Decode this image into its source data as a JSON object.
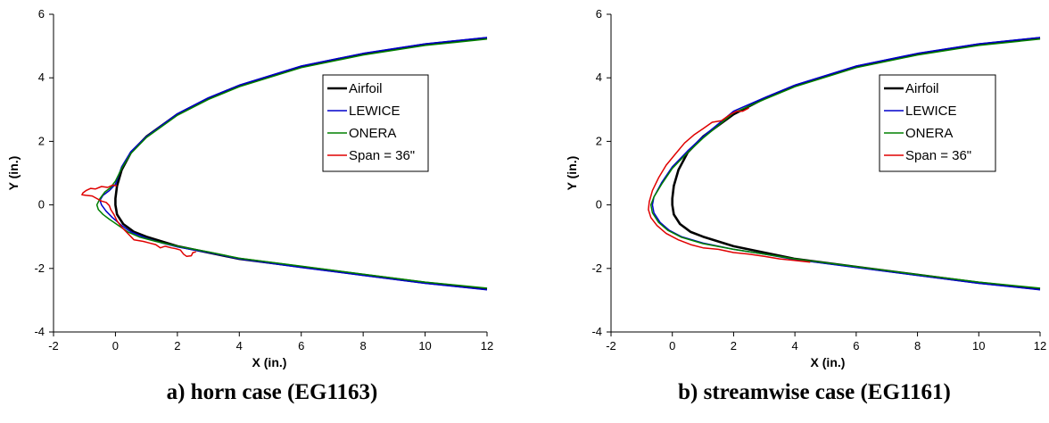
{
  "chart_data": [
    {
      "type": "line",
      "caption": "a) horn case (EG1163)",
      "xlabel": "X (in.)",
      "ylabel": "Y (in.)",
      "xlim": [
        -2,
        12
      ],
      "ylim": [
        -4,
        6
      ],
      "xticks": [
        "-2",
        "0",
        "2",
        "4",
        "6",
        "8",
        "10",
        "12"
      ],
      "yticks": [
        "-4",
        "-2",
        "0",
        "2",
        "4",
        "6"
      ],
      "legend": [
        "Airfoil",
        "LEWICE",
        "ONERA",
        "Span = 36\""
      ],
      "series": [
        {
          "name": "Airfoil",
          "color": "#000000",
          "points": [
            [
              12,
              5.25
            ],
            [
              10,
              5.05
            ],
            [
              8,
              4.75
            ],
            [
              6,
              4.35
            ],
            [
              4,
              3.75
            ],
            [
              3,
              3.35
            ],
            [
              2,
              2.85
            ],
            [
              1,
              2.15
            ],
            [
              0.5,
              1.65
            ],
            [
              0.2,
              1.1
            ],
            [
              0.05,
              0.6
            ],
            [
              0,
              0.2
            ],
            [
              0,
              0
            ],
            [
              0.05,
              -0.3
            ],
            [
              0.25,
              -0.6
            ],
            [
              0.6,
              -0.85
            ],
            [
              1,
              -1.0
            ],
            [
              2,
              -1.3
            ],
            [
              3,
              -1.5
            ],
            [
              4,
              -1.7
            ],
            [
              6,
              -1.95
            ],
            [
              8,
              -2.2
            ],
            [
              10,
              -2.45
            ],
            [
              12,
              -2.65
            ]
          ]
        },
        {
          "name": "LEWICE",
          "color": "#0000cc",
          "points": [
            [
              12,
              5.27
            ],
            [
              10,
              5.07
            ],
            [
              8,
              4.77
            ],
            [
              6,
              4.37
            ],
            [
              4,
              3.77
            ],
            [
              3,
              3.37
            ],
            [
              2,
              2.87
            ],
            [
              1,
              2.15
            ],
            [
              0.5,
              1.68
            ],
            [
              0.2,
              1.2
            ],
            [
              0,
              0.65
            ],
            [
              -0.2,
              0.45
            ],
            [
              -0.4,
              0.3
            ],
            [
              -0.5,
              0.15
            ],
            [
              -0.45,
              0.0
            ],
            [
              -0.3,
              -0.2
            ],
            [
              -0.1,
              -0.4
            ],
            [
              0.2,
              -0.65
            ],
            [
              0.5,
              -0.85
            ],
            [
              1,
              -1.05
            ],
            [
              1.5,
              -1.2
            ],
            [
              2,
              -1.32
            ],
            [
              3,
              -1.5
            ],
            [
              4,
              -1.7
            ],
            [
              6,
              -1.97
            ],
            [
              8,
              -2.22
            ],
            [
              10,
              -2.47
            ],
            [
              12,
              -2.67
            ]
          ]
        },
        {
          "name": "ONERA",
          "color": "#008000",
          "points": [
            [
              12,
              5.22
            ],
            [
              10,
              5.02
            ],
            [
              8,
              4.72
            ],
            [
              6,
              4.32
            ],
            [
              4,
              3.72
            ],
            [
              3,
              3.32
            ],
            [
              2,
              2.82
            ],
            [
              1,
              2.12
            ],
            [
              0.5,
              1.62
            ],
            [
              0.2,
              1.15
            ],
            [
              0,
              0.75
            ],
            [
              -0.15,
              0.55
            ],
            [
              -0.35,
              0.4
            ],
            [
              -0.5,
              0.2
            ],
            [
              -0.6,
              0.0
            ],
            [
              -0.55,
              -0.15
            ],
            [
              -0.4,
              -0.3
            ],
            [
              -0.2,
              -0.45
            ],
            [
              0.1,
              -0.65
            ],
            [
              0.4,
              -0.85
            ],
            [
              0.8,
              -1.02
            ],
            [
              1.3,
              -1.15
            ],
            [
              2,
              -1.3
            ],
            [
              3,
              -1.48
            ],
            [
              4,
              -1.68
            ],
            [
              6,
              -1.93
            ],
            [
              8,
              -2.18
            ],
            [
              10,
              -2.43
            ],
            [
              12,
              -2.62
            ]
          ]
        },
        {
          "name": "Span = 36\"",
          "color": "#e00000",
          "points": [
            [
              0.05,
              0.6
            ],
            [
              -0.1,
              0.62
            ],
            [
              -0.25,
              0.55
            ],
            [
              -0.45,
              0.58
            ],
            [
              -0.65,
              0.5
            ],
            [
              -0.8,
              0.52
            ],
            [
              -0.95,
              0.45
            ],
            [
              -1.05,
              0.38
            ],
            [
              -1.08,
              0.32
            ],
            [
              -0.95,
              0.3
            ],
            [
              -0.75,
              0.28
            ],
            [
              -0.6,
              0.2
            ],
            [
              -0.45,
              0.12
            ],
            [
              -0.3,
              0.08
            ],
            [
              -0.2,
              -0.02
            ],
            [
              -0.15,
              -0.15
            ],
            [
              -0.05,
              -0.3
            ],
            [
              0.05,
              -0.5
            ],
            [
              0.2,
              -0.7
            ],
            [
              0.4,
              -0.9
            ],
            [
              0.6,
              -1.1
            ],
            [
              0.9,
              -1.15
            ],
            [
              1.1,
              -1.2
            ],
            [
              1.3,
              -1.25
            ],
            [
              1.45,
              -1.35
            ],
            [
              1.6,
              -1.3
            ],
            [
              1.8,
              -1.35
            ],
            [
              1.95,
              -1.38
            ],
            [
              2.1,
              -1.42
            ],
            [
              2.2,
              -1.55
            ],
            [
              2.3,
              -1.62
            ],
            [
              2.45,
              -1.6
            ],
            [
              2.5,
              -1.5
            ],
            [
              2.6,
              -1.48
            ]
          ]
        }
      ]
    },
    {
      "type": "line",
      "caption": "b) streamwise case (EG1161)",
      "xlabel": "X (in.)",
      "ylabel": "Y (in.)",
      "xlim": [
        -2,
        12
      ],
      "ylim": [
        -4,
        6
      ],
      "xticks": [
        "-2",
        "0",
        "2",
        "4",
        "6",
        "8",
        "10",
        "12"
      ],
      "yticks": [
        "-4",
        "-2",
        "0",
        "2",
        "4",
        "6"
      ],
      "legend": [
        "Airfoil",
        "LEWICE",
        "ONERA",
        "Span = 36\""
      ],
      "series": [
        {
          "name": "Airfoil",
          "color": "#000000",
          "points": [
            [
              12,
              5.25
            ],
            [
              10,
              5.05
            ],
            [
              8,
              4.75
            ],
            [
              6,
              4.35
            ],
            [
              4,
              3.75
            ],
            [
              3,
              3.35
            ],
            [
              2,
              2.85
            ],
            [
              1,
              2.15
            ],
            [
              0.5,
              1.65
            ],
            [
              0.2,
              1.1
            ],
            [
              0.05,
              0.6
            ],
            [
              0,
              0.2
            ],
            [
              0,
              0
            ],
            [
              0.05,
              -0.3
            ],
            [
              0.25,
              -0.6
            ],
            [
              0.6,
              -0.85
            ],
            [
              1,
              -1.0
            ],
            [
              2,
              -1.3
            ],
            [
              3,
              -1.5
            ],
            [
              4,
              -1.7
            ],
            [
              6,
              -1.95
            ],
            [
              8,
              -2.2
            ],
            [
              10,
              -2.45
            ],
            [
              12,
              -2.65
            ]
          ]
        },
        {
          "name": "LEWICE",
          "color": "#0000cc",
          "points": [
            [
              12,
              5.27
            ],
            [
              10,
              5.07
            ],
            [
              8,
              4.77
            ],
            [
              6,
              4.37
            ],
            [
              4,
              3.77
            ],
            [
              3,
              3.37
            ],
            [
              2,
              2.95
            ],
            [
              1.5,
              2.55
            ],
            [
              1,
              2.15
            ],
            [
              0.5,
              1.7
            ],
            [
              0,
              1.2
            ],
            [
              -0.35,
              0.7
            ],
            [
              -0.6,
              0.25
            ],
            [
              -0.65,
              0.0
            ],
            [
              -0.6,
              -0.25
            ],
            [
              -0.4,
              -0.55
            ],
            [
              -0.1,
              -0.8
            ],
            [
              0.3,
              -1.0
            ],
            [
              1,
              -1.2
            ],
            [
              2,
              -1.4
            ],
            [
              3,
              -1.55
            ],
            [
              4,
              -1.72
            ],
            [
              6,
              -1.97
            ],
            [
              8,
              -2.22
            ],
            [
              10,
              -2.47
            ],
            [
              12,
              -2.67
            ]
          ]
        },
        {
          "name": "ONERA",
          "color": "#008000",
          "points": [
            [
              12,
              5.22
            ],
            [
              10,
              5.02
            ],
            [
              8,
              4.72
            ],
            [
              6,
              4.32
            ],
            [
              4,
              3.72
            ],
            [
              3,
              3.32
            ],
            [
              2,
              2.9
            ],
            [
              1.5,
              2.5
            ],
            [
              1,
              2.1
            ],
            [
              0.5,
              1.65
            ],
            [
              0,
              1.15
            ],
            [
              -0.35,
              0.65
            ],
            [
              -0.6,
              0.25
            ],
            [
              -0.7,
              0.0
            ],
            [
              -0.65,
              -0.25
            ],
            [
              -0.45,
              -0.55
            ],
            [
              -0.15,
              -0.8
            ],
            [
              0.3,
              -1.02
            ],
            [
              1,
              -1.22
            ],
            [
              2,
              -1.4
            ],
            [
              3,
              -1.55
            ],
            [
              4,
              -1.7
            ],
            [
              6,
              -1.94
            ],
            [
              8,
              -2.19
            ],
            [
              10,
              -2.43
            ],
            [
              12,
              -2.62
            ]
          ]
        },
        {
          "name": "Span = 36\"",
          "color": "#e00000",
          "points": [
            [
              2.5,
              3.05
            ],
            [
              2.3,
              2.95
            ],
            [
              2.1,
              2.95
            ],
            [
              1.9,
              2.85
            ],
            [
              1.6,
              2.65
            ],
            [
              1.3,
              2.6
            ],
            [
              1.0,
              2.4
            ],
            [
              0.7,
              2.2
            ],
            [
              0.4,
              1.95
            ],
            [
              0.1,
              1.6
            ],
            [
              -0.2,
              1.25
            ],
            [
              -0.45,
              0.85
            ],
            [
              -0.65,
              0.45
            ],
            [
              -0.75,
              0.1
            ],
            [
              -0.78,
              -0.15
            ],
            [
              -0.7,
              -0.4
            ],
            [
              -0.5,
              -0.65
            ],
            [
              -0.2,
              -0.9
            ],
            [
              0.2,
              -1.1
            ],
            [
              0.6,
              -1.25
            ],
            [
              1.0,
              -1.35
            ],
            [
              1.5,
              -1.4
            ],
            [
              2.0,
              -1.5
            ],
            [
              2.5,
              -1.55
            ],
            [
              3.0,
              -1.62
            ],
            [
              3.5,
              -1.7
            ],
            [
              4.0,
              -1.75
            ],
            [
              4.5,
              -1.8
            ]
          ]
        }
      ]
    }
  ]
}
